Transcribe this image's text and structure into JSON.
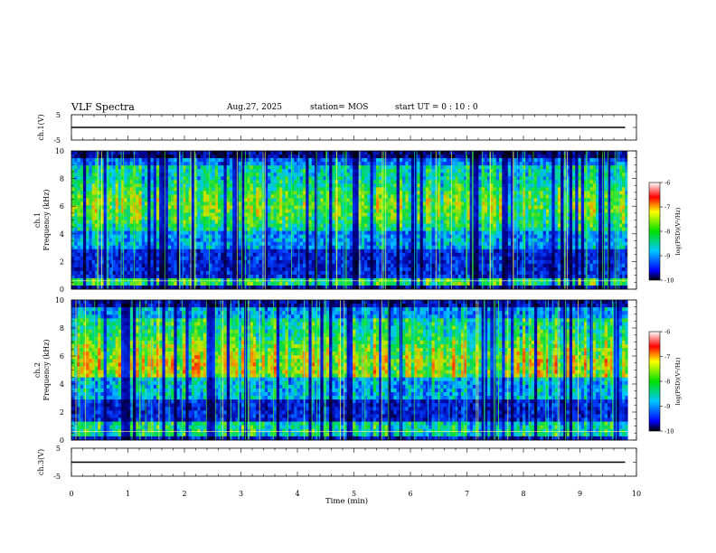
{
  "header": {
    "title": "VLF Spectra",
    "date": "Aug.27, 2025",
    "station": "station= MOS",
    "start": "start  UT =   0  : 10 : 0"
  },
  "chart_data": [
    {
      "type": "line",
      "name": "ch1-waveform",
      "ylabel": "ch.1(V)",
      "ylim": [
        -5,
        5
      ],
      "ytick_labels": [
        "5",
        "-5"
      ],
      "x": [
        0,
        9.8
      ],
      "values": [
        0,
        0
      ]
    },
    {
      "type": "heatmap",
      "name": "ch1-spectrogram",
      "ylabel": "ch.1\nFrequency (kHz)",
      "ylim": [
        0,
        10
      ],
      "ytick_labels": [
        "0",
        "2",
        "4",
        "6",
        "8",
        "10"
      ],
      "xlim": [
        0,
        10
      ],
      "colorbar": {
        "label": "log(PSD)(V²/Hz)",
        "range": [
          -10,
          -6
        ],
        "tick_labels": [
          "-6",
          "-7",
          "-8",
          "-9",
          "-10"
        ]
      }
    },
    {
      "type": "heatmap",
      "name": "ch2-spectrogram",
      "ylabel": "ch.2\nFrequency (kHz)",
      "ylim": [
        0,
        10
      ],
      "ytick_labels": [
        "0",
        "2",
        "4",
        "6",
        "8",
        "10"
      ],
      "xlim": [
        0,
        10
      ],
      "colorbar": {
        "label": "log(PSD)(V²/Hz)",
        "range": [
          -10,
          -6
        ],
        "tick_labels": [
          "-6",
          "-7",
          "-8",
          "-9",
          "-10"
        ]
      }
    },
    {
      "type": "line",
      "name": "ch3-waveform",
      "ylabel": "ch.3(V)",
      "ylim": [
        -5,
        5
      ],
      "ytick_labels": [
        "5",
        "-5"
      ],
      "x": [
        0,
        9.8
      ],
      "values": [
        0,
        0
      ]
    }
  ],
  "x_axis": {
    "label": "Time  (min)",
    "range": [
      0,
      10
    ],
    "tick_labels": [
      "0",
      "1",
      "2",
      "3",
      "4",
      "5",
      "6",
      "7",
      "8",
      "9",
      "10"
    ]
  }
}
